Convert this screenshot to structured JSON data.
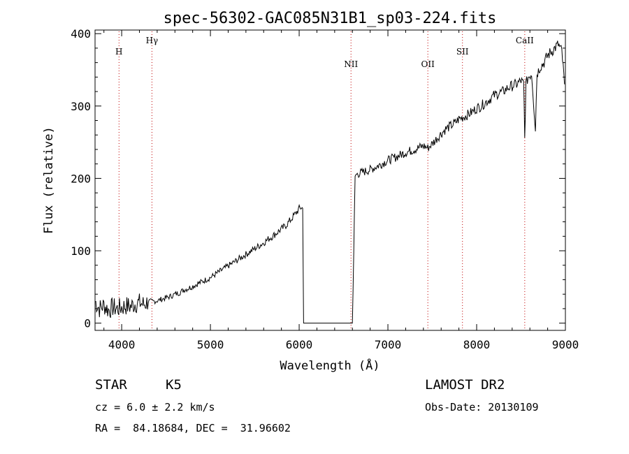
{
  "chart_data": {
    "type": "line",
    "title": "spec-56302-GAC085N31B1_sp03-224.fits",
    "xlabel": "Wavelength (Å)",
    "ylabel": "Flux (relative)",
    "xlim": [
      3700,
      9000
    ],
    "ylim": [
      -10,
      405
    ],
    "x_ticks": [
      4000,
      5000,
      6000,
      7000,
      8000,
      9000
    ],
    "y_ticks": [
      0,
      100,
      200,
      300,
      400
    ],
    "x_tick_labels": [
      "4000",
      "5000",
      "6000",
      "7000",
      "8000",
      "9000"
    ],
    "y_tick_labels": [
      "0",
      "100",
      "200",
      "300",
      "400"
    ],
    "grid": false,
    "lines": [
      {
        "name": "H",
        "x": 3970
      },
      {
        "name": "Hγ",
        "x": 4341
      },
      {
        "name": "NII",
        "x": 6584
      },
      {
        "name": "OII",
        "x": 7450
      },
      {
        "name": "SII",
        "x": 7840
      },
      {
        "name": "CaII",
        "x": 8542
      }
    ],
    "series": [
      {
        "x": [
          3700,
          3750,
          3800,
          3850,
          3900,
          3950,
          4000,
          4050,
          4100,
          4150,
          4200,
          4250,
          4300,
          4350,
          4400,
          4450,
          4500,
          4550,
          4600,
          4650,
          4700,
          4750,
          4800,
          4850,
          4900,
          4950,
          5000,
          5050,
          5100,
          5150,
          5200,
          5250,
          5300,
          5350,
          5400,
          5450,
          5500,
          5550,
          5600,
          5650,
          5700,
          5750,
          5800,
          5850,
          5900,
          5950,
          6000,
          6025,
          6040,
          6050,
          6200,
          6400,
          6600,
          6630,
          6640,
          6700,
          6800,
          6900,
          7000,
          7100,
          7200,
          7300,
          7400,
          7450,
          7500,
          7550,
          7600,
          7650,
          7700,
          7750,
          7800,
          7850,
          7900,
          7950,
          8000,
          8050,
          8100,
          8150,
          8200,
          8250,
          8300,
          8350,
          8400,
          8450,
          8500,
          8530,
          8542,
          8555,
          8580,
          8620,
          8662,
          8680,
          8720,
          8760,
          8800,
          8840,
          8880,
          8920,
          8960,
          8990
        ],
        "y": [
          30,
          20,
          25,
          18,
          22,
          20,
          22,
          24,
          23,
          27,
          28,
          26,
          30,
          30,
          31,
          33,
          35,
          37,
          40,
          42,
          46,
          48,
          51,
          54,
          57,
          60,
          63,
          67,
          71,
          75,
          79,
          83,
          87,
          91,
          95,
          99,
          103,
          107,
          111,
          116,
          120,
          125,
          130,
          135,
          142,
          150,
          158,
          160,
          158,
          0,
          0,
          0,
          0,
          200,
          205,
          208,
          212,
          218,
          225,
          230,
          236,
          240,
          245,
          242,
          248,
          255,
          262,
          268,
          272,
          276,
          282,
          285,
          288,
          292,
          297,
          300,
          305,
          310,
          315,
          318,
          320,
          325,
          328,
          330,
          335,
          330,
          255,
          330,
          340,
          345,
          268,
          345,
          355,
          360,
          370,
          375,
          380,
          385,
          375,
          330
        ]
      }
    ]
  },
  "info": {
    "object_type": "STAR",
    "subclass": "K5",
    "survey": "LAMOST DR2",
    "redshift": "cz = 6.0 ± 2.2 km/s",
    "obs_date": "Obs-Date: 20130109",
    "coords": "RA =  84.18684, DEC =  31.96602"
  }
}
